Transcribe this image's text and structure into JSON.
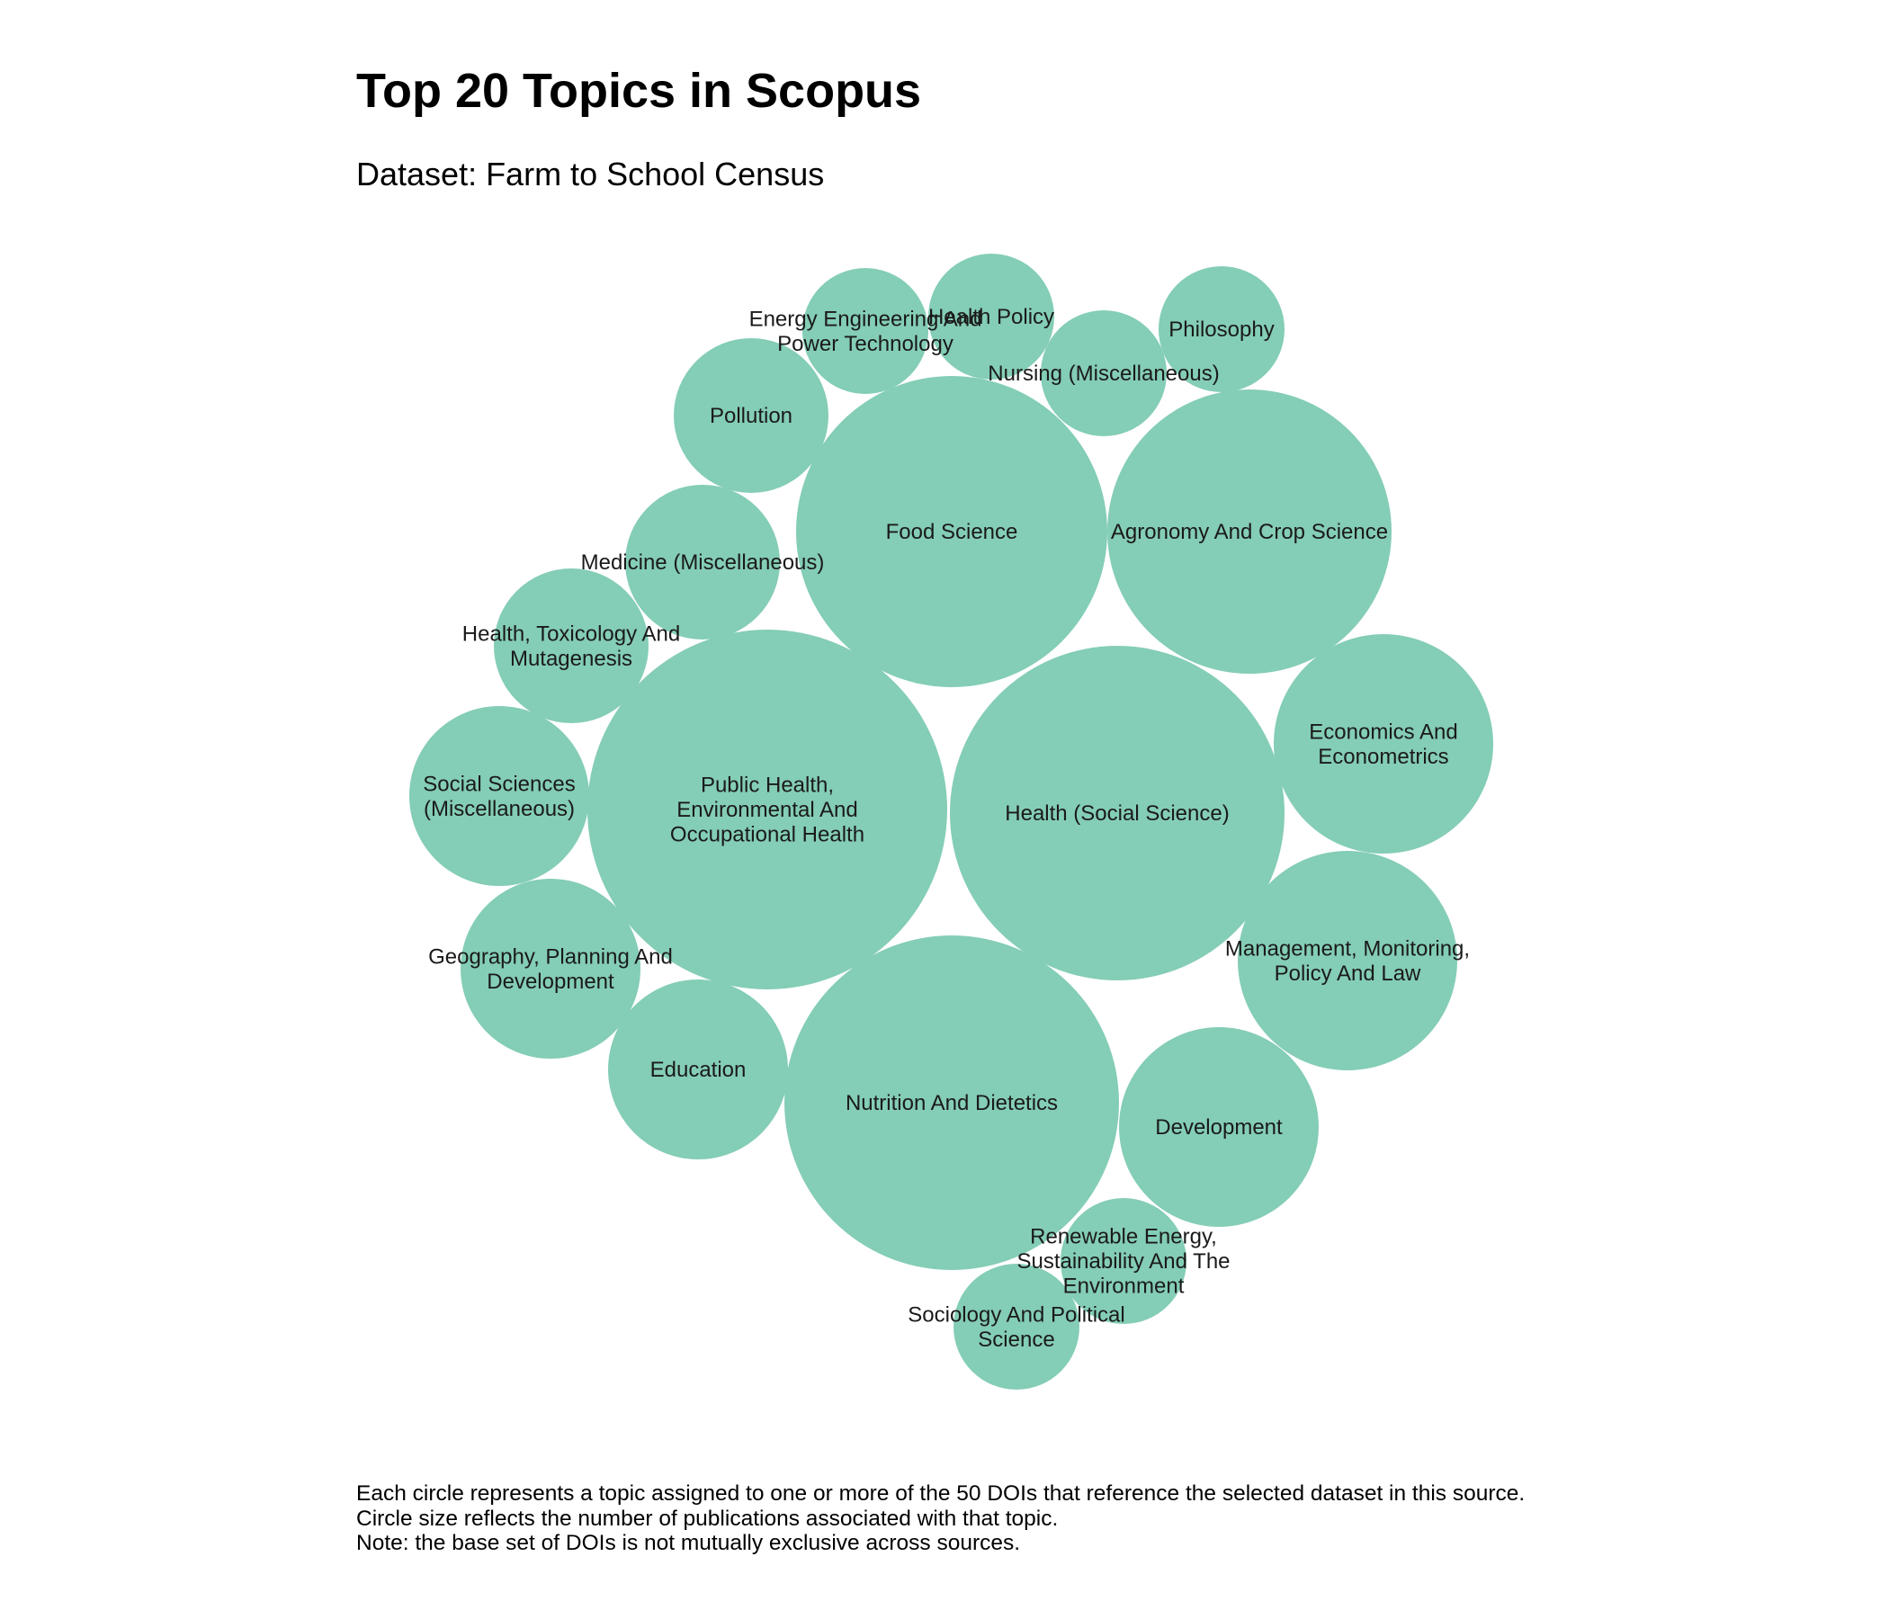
{
  "chart_data": {
    "type": "bubble",
    "title": "Top 20 Topics in Scopus",
    "subtitle": "Dataset: Farm to School Census",
    "color": "#84cdb6",
    "bubbles": [
      {
        "label": "Health (Social Science)",
        "value": 17
      },
      {
        "label": "Public Health, Environmental And Occupational Health",
        "value": 17
      },
      {
        "label": "Nutrition And Dietetics",
        "value": 15
      },
      {
        "label": "Food Science",
        "value": 13
      },
      {
        "label": "Agronomy And Crop Science",
        "value": 10
      },
      {
        "label": "Economics And Econometrics",
        "value": 6
      },
      {
        "label": "Management, Monitoring, Policy And Law",
        "value": 6
      },
      {
        "label": "Development",
        "value": 5
      },
      {
        "label": "Education",
        "value": 4
      },
      {
        "label": "Geography, Planning And Development",
        "value": 4
      },
      {
        "label": "Social Sciences (Miscellaneous)",
        "value": 4
      },
      {
        "label": "Pollution",
        "value": 3
      },
      {
        "label": "Medicine (Miscellaneous)",
        "value": 3
      },
      {
        "label": "Health, Toxicology And Mutagenesis",
        "value": 3
      },
      {
        "label": "Energy Engineering And Power Technology",
        "value": 2
      },
      {
        "label": "Health Policy",
        "value": 2
      },
      {
        "label": "Nursing (Miscellaneous)",
        "value": 2
      },
      {
        "label": "Philosophy",
        "value": 2
      },
      {
        "label": "Renewable Energy, Sustainability And The Environment",
        "value": 2
      },
      {
        "label": "Sociology And Political Science",
        "value": 2
      }
    ]
  },
  "caption": {
    "line1": "Each circle represents a topic assigned to one or more of the 50 DOIs that reference the selected dataset in this source.",
    "line2": "Circle size reflects the number of publications associated with that topic.",
    "line3": "Note: the base set of DOIs is not mutually exclusive across sources."
  }
}
